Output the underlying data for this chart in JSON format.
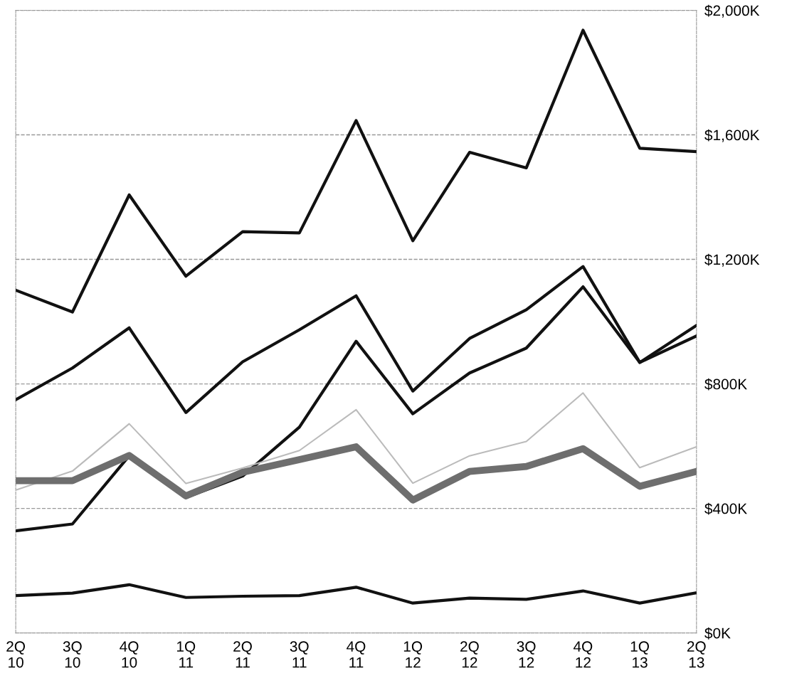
{
  "chart_data": {
    "type": "line",
    "categories": [
      "2Q\n10",
      "3Q\n10",
      "4Q\n10",
      "1Q\n11",
      "2Q\n11",
      "3Q\n11",
      "4Q\n11",
      "1Q\n12",
      "2Q\n12",
      "3Q\n12",
      "4Q\n12",
      "1Q\n13",
      "2Q\n13"
    ],
    "series": [
      {
        "color": "#111111",
        "values": [
          1101,
          1031,
          1407,
          1146,
          1289,
          1285,
          1646,
          1260,
          1544,
          1494,
          1936,
          1557,
          1546
        ]
      },
      {
        "color": "#111111",
        "values": [
          749,
          851,
          980,
          708,
          871,
          974,
          1083,
          777,
          946,
          1038,
          1177,
          869,
          988
        ]
      },
      {
        "color": "#111111",
        "values": [
          328,
          350,
          569,
          435,
          504,
          661,
          937,
          704,
          835,
          915,
          1112,
          869,
          954
        ]
      },
      {
        "color": "#bbbbbb",
        "values": [
          459,
          520,
          672,
          480,
          530,
          586,
          717,
          481,
          569,
          615,
          771,
          531,
          598
        ]
      },
      {
        "color": "#6e6e6e",
        "values": [
          489,
          489,
          570,
          440,
          516,
          557,
          598,
          427,
          519,
          535,
          592,
          471,
          519
        ]
      },
      {
        "color": "#111111",
        "values": [
          120,
          128,
          155,
          114,
          118,
          120,
          147,
          96,
          112,
          108,
          135,
          96,
          129
        ]
      }
    ],
    "ylim": [
      0,
      2000
    ],
    "yticks": [
      {
        "value": 0,
        "label": "$0K"
      },
      {
        "value": 400,
        "label": "$400K"
      },
      {
        "value": 800,
        "label": "$800K"
      },
      {
        "value": 1200,
        "label": "$1,200K"
      },
      {
        "value": 1600,
        "label": "$1,600K"
      },
      {
        "value": 2000,
        "label": "$2,000K"
      }
    ],
    "grid": "y",
    "legend": false,
    "marker": "none",
    "line_style": "solid"
  }
}
